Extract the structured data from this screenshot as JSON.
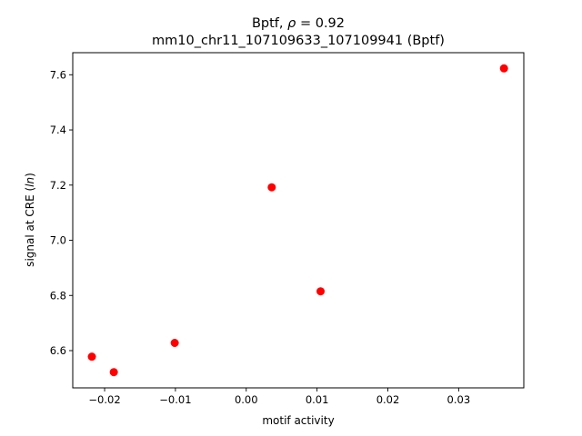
{
  "chart_data": {
    "type": "scatter",
    "title_line1": "Bptf, ρ = 0.92",
    "title_line2": "mm10_chr11_107109633_107109941 (Bptf)",
    "xlabel": "motif activity",
    "ylabel": "signal at CRE (ln)",
    "xlim": [
      -0.0245,
      0.0392
    ],
    "ylim": [
      6.465,
      7.68
    ],
    "xticks": [
      -0.02,
      -0.01,
      0.0,
      0.01,
      0.02,
      0.03
    ],
    "xtick_labels": [
      "−0.02",
      "−0.01",
      "0.00",
      "0.01",
      "0.02",
      "0.03"
    ],
    "yticks": [
      6.6,
      6.8,
      7.0,
      7.2,
      7.4,
      7.6
    ],
    "ytick_labels": [
      "6.6",
      "6.8",
      "7.0",
      "7.2",
      "7.4",
      "7.6"
    ],
    "points": [
      {
        "x": -0.0218,
        "y": 6.578
      },
      {
        "x": -0.0187,
        "y": 6.522
      },
      {
        "x": -0.0101,
        "y": 6.628
      },
      {
        "x": 0.0036,
        "y": 7.192
      },
      {
        "x": 0.0105,
        "y": 6.815
      },
      {
        "x": 0.0364,
        "y": 7.623
      }
    ],
    "marker_color": "#ff0000",
    "grid": false
  }
}
